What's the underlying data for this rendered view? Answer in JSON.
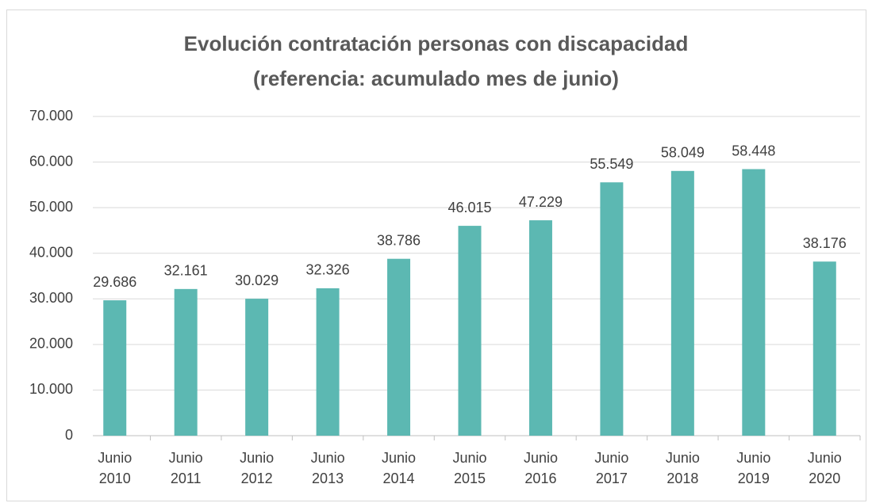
{
  "chart_data": {
    "type": "bar",
    "title": "Evolución contratación personas con discapacidad",
    "subtitle": "(referencia: acumulado mes de junio)",
    "categories": [
      "Junio 2010",
      "Junio 2011",
      "Junio 2012",
      "Junio 2013",
      "Junio 2014",
      "Junio 2015",
      "Junio 2016",
      "Junio 2017",
      "Junio 2018",
      "Junio 2019",
      "Junio 2020"
    ],
    "values": [
      29686,
      32161,
      30029,
      32326,
      38786,
      46015,
      47229,
      55549,
      58049,
      58448,
      38176
    ],
    "value_labels": [
      "29.686",
      "32.161",
      "30.029",
      "32.326",
      "38.786",
      "46.015",
      "47.229",
      "55.549",
      "58.049",
      "58.448",
      "38.176"
    ],
    "color": "#5cb8b2",
    "ylim": [
      0,
      70000
    ],
    "yticks": [
      0,
      {
        "value": 10000,
        "label": "10.000"
      },
      {
        "value": 20000,
        "label": "20.000"
      },
      {
        "value": 30000,
        "label": "30.000"
      },
      {
        "value": 40000,
        "label": "40.000"
      },
      {
        "value": 50000,
        "label": "50.000"
      },
      {
        "value": 60000,
        "label": "60.000"
      },
      {
        "value": 70000,
        "label": "70.000"
      }
    ],
    "grid": true
  }
}
